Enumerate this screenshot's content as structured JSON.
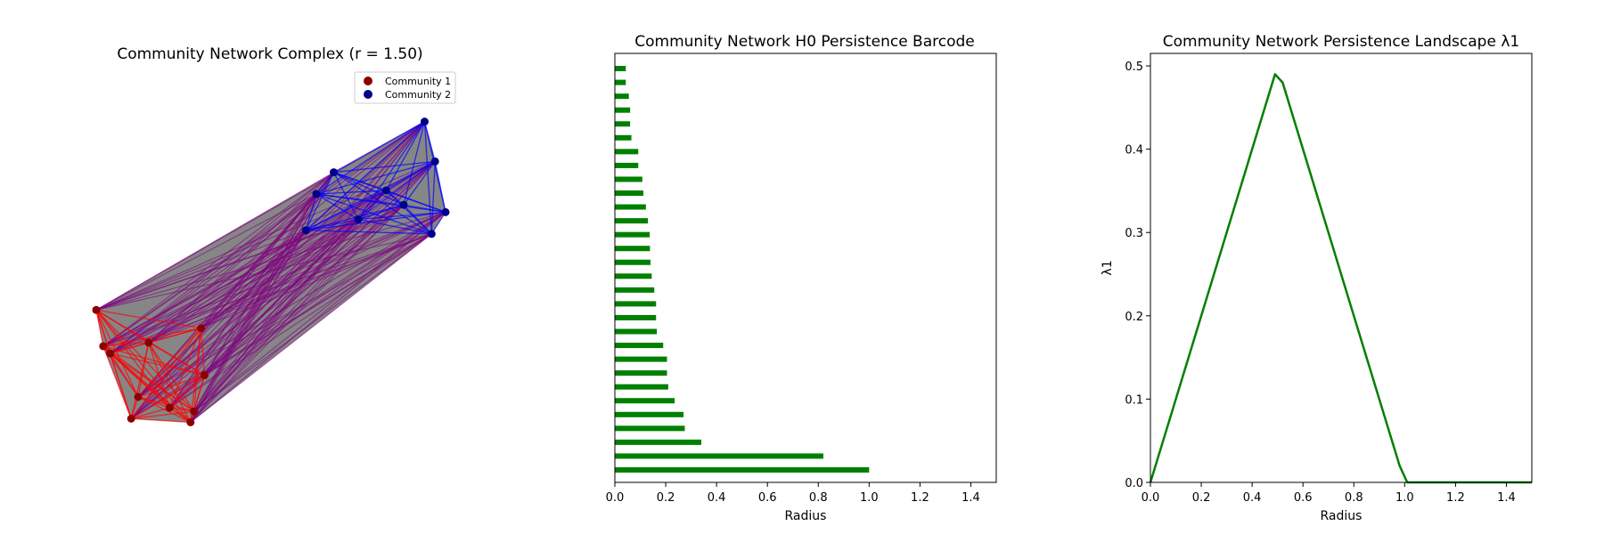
{
  "chart_data": [
    {
      "type": "network",
      "title": "Community Network Complex (r = 1.50)",
      "legend": {
        "placement": "upper-right",
        "entries": [
          {
            "label": "Community 1",
            "color": "#8b0000"
          },
          {
            "label": "Community 2",
            "color": "#00008b"
          }
        ]
      },
      "colors": {
        "community1_edges": "#ff0000",
        "community2_edges": "#0000ff",
        "between_edges": "#800080",
        "faces": "#808080"
      },
      "nodes": [
        {
          "community": 1,
          "x": 0.0,
          "y": 0.39
        },
        {
          "community": 1,
          "x": 0.02,
          "y": 0.29
        },
        {
          "community": 1,
          "x": 0.1,
          "y": 0.09
        },
        {
          "community": 1,
          "x": 0.27,
          "y": 0.08
        },
        {
          "community": 1,
          "x": 0.28,
          "y": 0.11
        },
        {
          "community": 1,
          "x": 0.12,
          "y": 0.15
        },
        {
          "community": 1,
          "x": 0.15,
          "y": 0.3
        },
        {
          "community": 1,
          "x": 0.21,
          "y": 0.12
        },
        {
          "community": 1,
          "x": 0.3,
          "y": 0.34
        },
        {
          "community": 1,
          "x": 0.31,
          "y": 0.21
        },
        {
          "community": 1,
          "x": 0.04,
          "y": 0.27
        },
        {
          "community": 2,
          "x": 0.94,
          "y": 0.91
        },
        {
          "community": 2,
          "x": 0.97,
          "y": 0.8
        },
        {
          "community": 2,
          "x": 1.0,
          "y": 0.66
        },
        {
          "community": 2,
          "x": 0.96,
          "y": 0.6
        },
        {
          "community": 2,
          "x": 0.63,
          "y": 0.71
        },
        {
          "community": 2,
          "x": 0.6,
          "y": 0.61
        },
        {
          "community": 2,
          "x": 0.75,
          "y": 0.64
        },
        {
          "community": 2,
          "x": 0.83,
          "y": 0.72
        },
        {
          "community": 2,
          "x": 0.68,
          "y": 0.77
        },
        {
          "community": 2,
          "x": 0.88,
          "y": 0.68
        }
      ]
    },
    {
      "type": "barh",
      "title": "Community Network H0 Persistence Barcode",
      "xlabel": "Radius",
      "ylabel": "",
      "xlim": [
        0,
        1.5
      ],
      "xticks": [
        "0.0",
        "0.2",
        "0.4",
        "0.6",
        "0.8",
        "1.0",
        "1.2",
        "1.4"
      ],
      "color": "#008000",
      "bars": [
        {
          "birth": 0,
          "death": 1.0
        },
        {
          "birth": 0,
          "death": 0.82
        },
        {
          "birth": 0,
          "death": 0.34
        },
        {
          "birth": 0,
          "death": 0.275
        },
        {
          "birth": 0,
          "death": 0.27
        },
        {
          "birth": 0,
          "death": 0.235
        },
        {
          "birth": 0,
          "death": 0.21
        },
        {
          "birth": 0,
          "death": 0.205
        },
        {
          "birth": 0,
          "death": 0.205
        },
        {
          "birth": 0,
          "death": 0.19
        },
        {
          "birth": 0,
          "death": 0.165
        },
        {
          "birth": 0,
          "death": 0.162
        },
        {
          "birth": 0,
          "death": 0.162
        },
        {
          "birth": 0,
          "death": 0.155
        },
        {
          "birth": 0,
          "death": 0.145
        },
        {
          "birth": 0,
          "death": 0.14
        },
        {
          "birth": 0,
          "death": 0.138
        },
        {
          "birth": 0,
          "death": 0.137
        },
        {
          "birth": 0,
          "death": 0.13
        },
        {
          "birth": 0,
          "death": 0.122
        },
        {
          "birth": 0,
          "death": 0.112
        },
        {
          "birth": 0,
          "death": 0.108
        },
        {
          "birth": 0,
          "death": 0.092
        },
        {
          "birth": 0,
          "death": 0.092
        },
        {
          "birth": 0,
          "death": 0.065
        },
        {
          "birth": 0,
          "death": 0.06
        },
        {
          "birth": 0,
          "death": 0.06
        },
        {
          "birth": 0,
          "death": 0.055
        },
        {
          "birth": 0,
          "death": 0.043
        },
        {
          "birth": 0,
          "death": 0.043
        }
      ]
    },
    {
      "type": "line",
      "title": "Community Network Persistence Landscape λ1",
      "xlabel": "Radius",
      "ylabel": "λ1",
      "xlim": [
        0,
        1.5
      ],
      "ylim": [
        0,
        0.515
      ],
      "xticks": [
        "0.0",
        "0.2",
        "0.4",
        "0.6",
        "0.8",
        "1.0",
        "1.2",
        "1.4"
      ],
      "yticks": [
        "0.0",
        "0.1",
        "0.2",
        "0.3",
        "0.4",
        "0.5"
      ],
      "color": "#008000",
      "series": [
        {
          "x": [
            0.0,
            0.49,
            0.52,
            0.98,
            1.01,
            1.5
          ],
          "y": [
            0.0,
            0.49,
            0.48,
            0.02,
            0.0,
            0.0
          ]
        }
      ]
    }
  ]
}
